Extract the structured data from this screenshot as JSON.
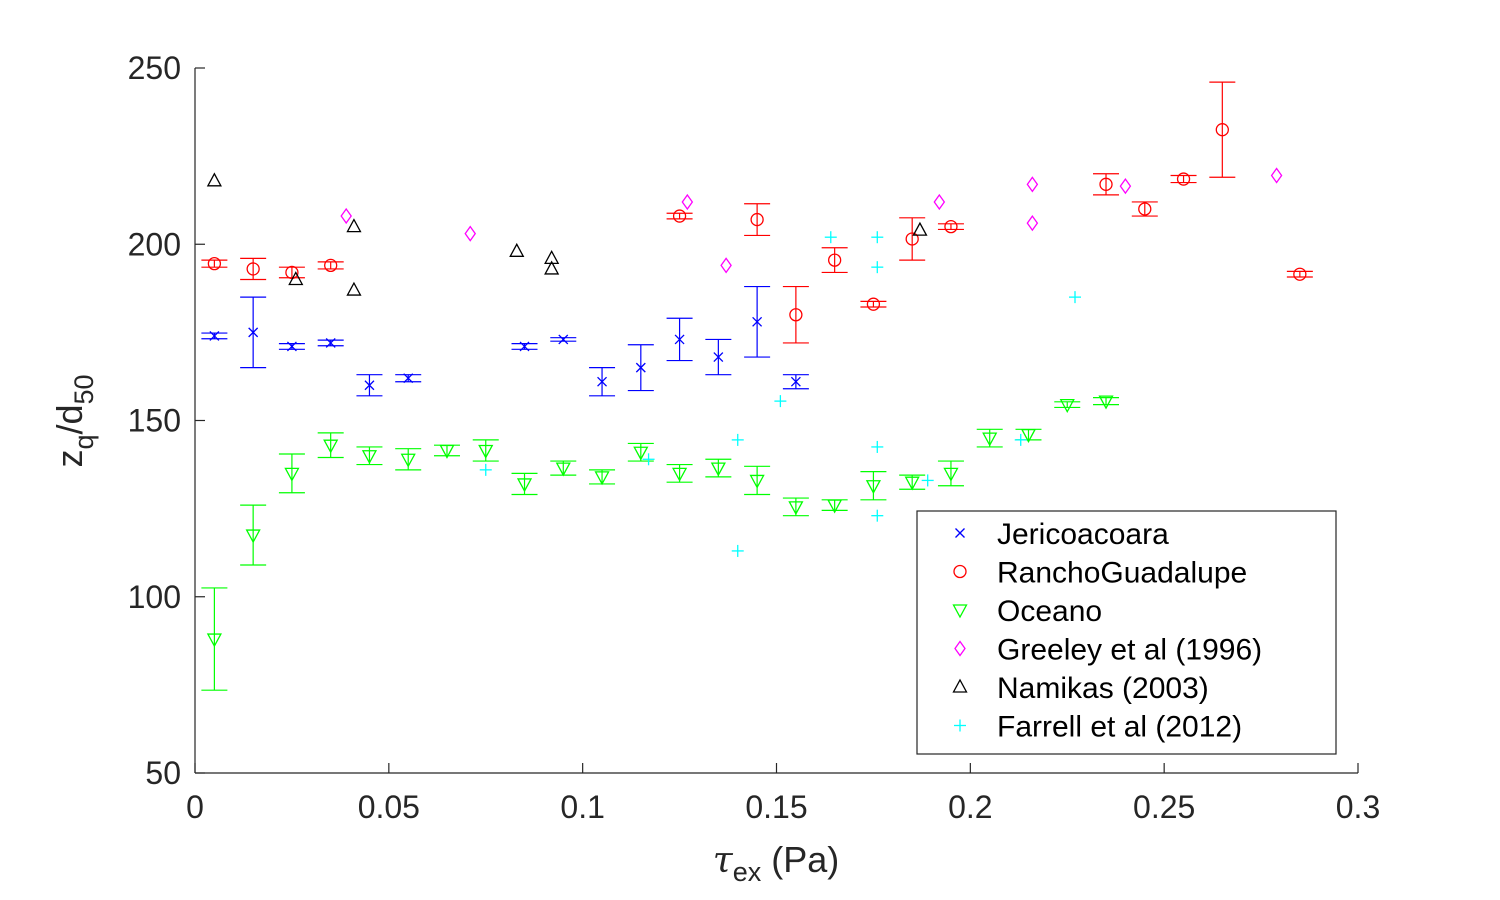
{
  "chart_data": {
    "type": "scatter",
    "title": "",
    "xlabel": {
      "symbol": "τ",
      "subscript": "ex",
      "rest": " (Pa)"
    },
    "ylabel": {
      "base": "z",
      "sub1": "q",
      "mid": "/d",
      "sub2": "50"
    },
    "xlim": [
      0,
      0.3
    ],
    "ylim": [
      50,
      250
    ],
    "xticks": [
      0,
      0.05,
      0.1,
      0.15,
      0.2,
      0.25,
      0.3
    ],
    "xtick_labels": [
      "0",
      "0.05",
      "0.1",
      "0.15",
      "0.2",
      "0.25",
      "0.3"
    ],
    "yticks": [
      50,
      100,
      150,
      200,
      250
    ],
    "ytick_labels": [
      "50",
      "100",
      "150",
      "200",
      "250"
    ],
    "grid": false,
    "legend_position": "bottom-right",
    "series": [
      {
        "name": "Jericoacoara",
        "marker": "x",
        "color": "#0000ff",
        "points": [
          {
            "x": 0.005,
            "y": 174,
            "err": 0.8
          },
          {
            "x": 0.015,
            "y": 175,
            "err": 10
          },
          {
            "x": 0.025,
            "y": 171,
            "err": 0.8
          },
          {
            "x": 0.035,
            "y": 172,
            "err": 0.8
          },
          {
            "x": 0.045,
            "y": 160,
            "err": 3
          },
          {
            "x": 0.055,
            "y": 162,
            "err": 1
          },
          {
            "x": 0.085,
            "y": 171,
            "err": 0.8
          },
          {
            "x": 0.095,
            "y": 173,
            "err": 0.5
          },
          {
            "x": 0.105,
            "y": 161,
            "err": 4
          },
          {
            "x": 0.115,
            "y": 165,
            "err": 6.5
          },
          {
            "x": 0.125,
            "y": 173,
            "err": 6
          },
          {
            "x": 0.135,
            "y": 168,
            "err": 5
          },
          {
            "x": 0.145,
            "y": 178,
            "err": 10
          },
          {
            "x": 0.155,
            "y": 161,
            "err": 2
          }
        ]
      },
      {
        "name": "RanchoGuadalupe",
        "marker": "o",
        "color": "#ff0000",
        "points": [
          {
            "x": 0.005,
            "y": 194.5,
            "err": 1
          },
          {
            "x": 0.015,
            "y": 193,
            "err": 3
          },
          {
            "x": 0.025,
            "y": 192,
            "err": 1.5
          },
          {
            "x": 0.035,
            "y": 194,
            "err": 1
          },
          {
            "x": 0.125,
            "y": 208,
            "err": 0.8
          },
          {
            "x": 0.145,
            "y": 207,
            "err": 4.5
          },
          {
            "x": 0.155,
            "y": 180,
            "err": 8
          },
          {
            "x": 0.165,
            "y": 195.5,
            "err": 3.5
          },
          {
            "x": 0.175,
            "y": 183,
            "err": 0.8
          },
          {
            "x": 0.185,
            "y": 201.5,
            "err": 6
          },
          {
            "x": 0.195,
            "y": 205,
            "err": 0.8
          },
          {
            "x": 0.235,
            "y": 217,
            "err": 3
          },
          {
            "x": 0.245,
            "y": 210,
            "err": 2
          },
          {
            "x": 0.255,
            "y": 218.5,
            "err": 1
          },
          {
            "x": 0.265,
            "y": 232.5,
            "err": 13.5
          },
          {
            "x": 0.285,
            "y": 191.5,
            "err": 0.8
          }
        ]
      },
      {
        "name": "Oceano",
        "marker": "v",
        "color": "#00ff00",
        "points": [
          {
            "x": 0.005,
            "y": 88,
            "err": 14.5
          },
          {
            "x": 0.015,
            "y": 117.5,
            "err": 8.5
          },
          {
            "x": 0.025,
            "y": 135,
            "err": 5.5
          },
          {
            "x": 0.035,
            "y": 143,
            "err": 3.5
          },
          {
            "x": 0.045,
            "y": 140,
            "err": 2.5
          },
          {
            "x": 0.055,
            "y": 139,
            "err": 3
          },
          {
            "x": 0.065,
            "y": 141.5,
            "err": 1.5
          },
          {
            "x": 0.075,
            "y": 141.5,
            "err": 3
          },
          {
            "x": 0.085,
            "y": 132,
            "err": 3
          },
          {
            "x": 0.095,
            "y": 136.5,
            "err": 2
          },
          {
            "x": 0.105,
            "y": 134,
            "err": 2
          },
          {
            "x": 0.115,
            "y": 141,
            "err": 2.5
          },
          {
            "x": 0.125,
            "y": 135,
            "err": 2.5
          },
          {
            "x": 0.135,
            "y": 136.5,
            "err": 2.5
          },
          {
            "x": 0.145,
            "y": 133,
            "err": 4
          },
          {
            "x": 0.155,
            "y": 125.5,
            "err": 2.5
          },
          {
            "x": 0.165,
            "y": 126,
            "err": 1.5
          },
          {
            "x": 0.175,
            "y": 131.5,
            "err": 4
          },
          {
            "x": 0.185,
            "y": 132.5,
            "err": 2
          },
          {
            "x": 0.195,
            "y": 135,
            "err": 3.5
          },
          {
            "x": 0.205,
            "y": 145,
            "err": 2.5
          },
          {
            "x": 0.215,
            "y": 146,
            "err": 1.5
          },
          {
            "x": 0.225,
            "y": 154.5,
            "err": 0.8
          },
          {
            "x": 0.235,
            "y": 155.5,
            "err": 1
          }
        ]
      },
      {
        "name": "Greeley et al (1996)",
        "marker": "diamond",
        "color": "#ff00ff",
        "points": [
          {
            "x": 0.039,
            "y": 208
          },
          {
            "x": 0.071,
            "y": 203
          },
          {
            "x": 0.127,
            "y": 212
          },
          {
            "x": 0.137,
            "y": 194
          },
          {
            "x": 0.192,
            "y": 212
          },
          {
            "x": 0.216,
            "y": 217
          },
          {
            "x": 0.216,
            "y": 206
          },
          {
            "x": 0.24,
            "y": 216.5
          },
          {
            "x": 0.279,
            "y": 219.5
          }
        ]
      },
      {
        "name": "Namikas (2003)",
        "marker": "triangle-up",
        "color": "#000000",
        "points": [
          {
            "x": 0.005,
            "y": 218
          },
          {
            "x": 0.026,
            "y": 190
          },
          {
            "x": 0.041,
            "y": 205
          },
          {
            "x": 0.041,
            "y": 187
          },
          {
            "x": 0.083,
            "y": 198
          },
          {
            "x": 0.092,
            "y": 196
          },
          {
            "x": 0.092,
            "y": 193
          },
          {
            "x": 0.187,
            "y": 204
          }
        ]
      },
      {
        "name": "Farrell et al (2012)",
        "marker": "+",
        "color": "#00ffff",
        "points": [
          {
            "x": 0.075,
            "y": 136
          },
          {
            "x": 0.117,
            "y": 139
          },
          {
            "x": 0.14,
            "y": 144.5
          },
          {
            "x": 0.14,
            "y": 113
          },
          {
            "x": 0.151,
            "y": 155.5
          },
          {
            "x": 0.164,
            "y": 202
          },
          {
            "x": 0.176,
            "y": 202
          },
          {
            "x": 0.176,
            "y": 193.5
          },
          {
            "x": 0.176,
            "y": 142.5
          },
          {
            "x": 0.176,
            "y": 123
          },
          {
            "x": 0.189,
            "y": 133
          },
          {
            "x": 0.213,
            "y": 144.5
          },
          {
            "x": 0.227,
            "y": 185
          }
        ]
      }
    ]
  }
}
